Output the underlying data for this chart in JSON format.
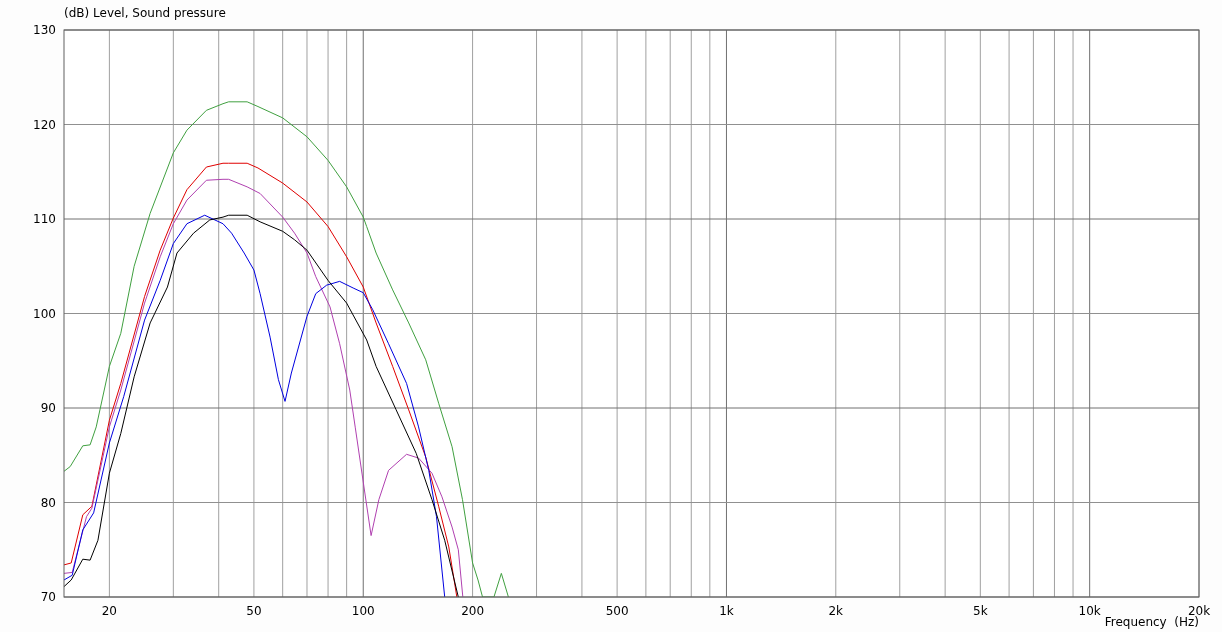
{
  "chart_data": {
    "type": "line",
    "xlabel": "Frequency  (Hz)",
    "ylabel": "(dB)  Level, Sound pressure",
    "log": "x",
    "grid": true,
    "line_style": "solid",
    "xlim": [
      15,
      20000
    ],
    "ylim": [
      70,
      130
    ],
    "xticks": [
      20,
      {
        "value": 30,
        "label": null
      },
      {
        "value": 40,
        "label": null
      },
      50,
      {
        "value": 60,
        "label": null
      },
      {
        "value": 70,
        "label": null
      },
      {
        "value": 80,
        "label": null
      },
      {
        "value": 90,
        "label": null
      },
      100,
      200,
      {
        "value": 300,
        "label": null
      },
      {
        "value": 400,
        "label": null
      },
      500,
      {
        "value": 600,
        "label": null
      },
      {
        "value": 700,
        "label": null
      },
      {
        "value": 800,
        "label": null
      },
      {
        "value": 900,
        "label": null
      },
      {
        "value": 1000,
        "label": "1k"
      },
      {
        "value": 2000,
        "label": "2k"
      },
      {
        "value": 3000,
        "label": null
      },
      {
        "value": 4000,
        "label": null
      },
      {
        "value": 5000,
        "label": "5k"
      },
      {
        "value": 6000,
        "label": null
      },
      {
        "value": 7000,
        "label": null
      },
      {
        "value": 8000,
        "label": null
      },
      {
        "value": 9000,
        "label": null
      },
      {
        "value": 10000,
        "label": "10k"
      },
      {
        "value": 20000,
        "label": "20k"
      }
    ],
    "yticks": [
      70,
      80,
      90,
      100,
      110,
      120,
      130
    ],
    "series": [
      {
        "color": "#40a040",
        "x": [
          15,
          15.6,
          16.9,
          17.7,
          18.4,
          20,
          21.5,
          23.4,
          25.9,
          30,
          32.7,
          37,
          41.1,
          42.6,
          47.9,
          51.3,
          60,
          70,
          80,
          90,
          100,
          102.2,
          108.5,
          120.5,
          133.4,
          148.6,
          161.3,
          175.6,
          187.6,
          200,
          207,
          213,
          229,
          240,
          251
        ],
        "values": [
          83.3,
          83.8,
          86,
          86.1,
          88,
          94.4,
          97.9,
          105,
          110.6,
          117,
          119.4,
          121.5,
          122.2,
          122.4,
          122.4,
          121.9,
          120.7,
          118.7,
          116.2,
          113.4,
          110.2,
          109.2,
          106.4,
          102.5,
          99,
          95.1,
          90.5,
          85.9,
          80.3,
          73.6,
          71.8,
          70,
          70,
          72.5,
          70
        ]
      },
      {
        "color": "#e00000",
        "x": [
          15,
          15.7,
          16.9,
          17.9,
          20,
          21.5,
          25,
          27.6,
          30,
          32.7,
          37,
          41.1,
          42.6,
          47.9,
          51.3,
          60,
          70,
          80,
          90,
          100,
          108.5,
          120.5,
          133.4,
          148.6,
          161.3,
          172,
          181
        ],
        "values": [
          73.4,
          73.6,
          78.7,
          79.6,
          88.7,
          92.6,
          101.8,
          106.7,
          110.1,
          113.1,
          115.5,
          115.9,
          115.9,
          115.9,
          115.4,
          113.8,
          111.8,
          109.2,
          106,
          102.8,
          99,
          94.4,
          89.8,
          84.8,
          79.6,
          75.3,
          70
        ]
      },
      {
        "color": "#b040b0",
        "x": [
          15,
          15.8,
          17.3,
          17.9,
          20,
          21.5,
          25,
          27.6,
          30,
          32.7,
          37,
          41.1,
          42.6,
          47.9,
          52,
          60,
          64.7,
          70,
          74,
          81,
          86.1,
          91.8,
          95.1,
          105.1,
          110.4,
          117.4,
          131.6,
          142,
          154.6,
          164.7,
          175.6,
          182.7,
          188
        ],
        "values": [
          72.5,
          72.6,
          78.5,
          79.4,
          88,
          91.9,
          101.1,
          106,
          109.5,
          112,
          114.1,
          114.2,
          114.2,
          113.4,
          112.7,
          110.2,
          108.5,
          106.4,
          103.9,
          100.7,
          96.8,
          91.9,
          87.9,
          76.5,
          80.3,
          83.4,
          85.1,
          84.7,
          83.1,
          80.6,
          77.4,
          75,
          70
        ]
      },
      {
        "color": "#0000e0",
        "x": [
          15,
          15.8,
          16.9,
          18.1,
          20,
          21.9,
          25,
          27.6,
          30,
          32.7,
          36.6,
          41.1,
          43.4,
          47,
          50,
          52,
          55.4,
          58.4,
          60.9,
          63.4,
          70,
          74,
          79.3,
          86.1,
          93.8,
          100,
          106.2,
          117.4,
          131.6,
          142,
          151.5,
          159.1,
          167.6
        ],
        "values": [
          71.8,
          72.3,
          77.1,
          78.9,
          86.3,
          91.2,
          99.3,
          103.5,
          107.4,
          109.5,
          110.4,
          109.5,
          108.5,
          106.4,
          104.6,
          102.1,
          97.5,
          93,
          90.7,
          93.7,
          99.7,
          102.1,
          103,
          103.4,
          102.7,
          102.2,
          100.4,
          96.8,
          92.6,
          88,
          83.4,
          78.5,
          70
        ]
      },
      {
        "color": "#000000",
        "x": [
          15,
          15.7,
          16.9,
          17.7,
          18.6,
          20,
          21.5,
          23.4,
          25.9,
          28.9,
          30.7,
          34.1,
          37.8,
          41.1,
          42.6,
          47.9,
          52,
          60,
          64.7,
          70,
          80,
          90,
          102.2,
          108.5,
          123.2,
          139.9,
          154.6,
          167.6,
          182.7
        ],
        "values": [
          71.1,
          71.8,
          74,
          73.9,
          76,
          83.1,
          87.3,
          93.3,
          99,
          102.8,
          106.4,
          108.5,
          109.9,
          110.2,
          110.4,
          110.4,
          109.7,
          108.7,
          107.8,
          106.7,
          103.5,
          101.1,
          97.2,
          94.4,
          89.8,
          85.2,
          80.3,
          76,
          70
        ]
      }
    ]
  }
}
